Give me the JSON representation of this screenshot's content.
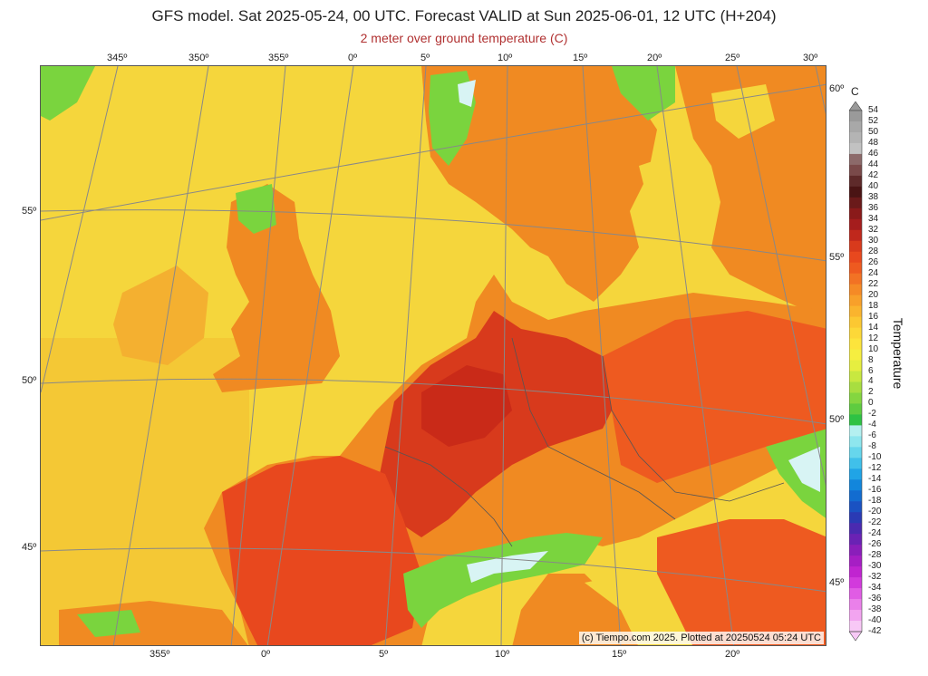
{
  "header": {
    "title": "GFS model. Sat 2025-05-24, 00 UTC. Forecast VALID at Sun 2025-06-01, 12 UTC (H+204)",
    "subtitle": "2 meter over ground temperature (C)"
  },
  "map": {
    "top_longitudes": [
      "345º",
      "350º",
      "355º",
      "0º",
      "5º",
      "10º",
      "15º",
      "20º",
      "25º",
      "30º"
    ],
    "bottom_longitudes": [
      "355º",
      "0º",
      "5º",
      "10º",
      "15º",
      "20º"
    ],
    "left_latitudes": [
      "55º",
      "50º",
      "45º"
    ],
    "right_latitudes": [
      "60º",
      "55º",
      "50º",
      "45º"
    ],
    "copyright": "(c) Tiempo.com 2025. Plotted at 20250524 05:24 UTC",
    "colors": {
      "ocean_warm": "#f5d63c",
      "land_hot": "#e8481e",
      "land_very_hot": "#c92a18",
      "land_warm": "#f08a22",
      "cool": "#6ad23c",
      "snow": "#d8f4f4",
      "graticule": "#888888"
    }
  },
  "legend": {
    "unit": "C",
    "title": "Temperature",
    "ticks": [
      "54",
      "52",
      "50",
      "48",
      "46",
      "44",
      "42",
      "40",
      "38",
      "36",
      "34",
      "32",
      "30",
      "28",
      "26",
      "24",
      "22",
      "20",
      "18",
      "16",
      "14",
      "12",
      "10",
      "8",
      "6",
      "4",
      "2",
      "0",
      "-2",
      "-4",
      "-6",
      "-8",
      "-10",
      "-12",
      "-14",
      "-16",
      "-18",
      "-20",
      "-22",
      "-24",
      "-26",
      "-28",
      "-30",
      "-32",
      "-34",
      "-36",
      "-38",
      "-40",
      "-42"
    ],
    "colors": [
      "#9a9a9a",
      "#a8a8a8",
      "#b4b4b4",
      "#c2c2c2",
      "#8c6a6a",
      "#7a4a4a",
      "#5e2a2a",
      "#4a1414",
      "#6a1a1a",
      "#8a1a1a",
      "#a51d1d",
      "#c0281c",
      "#d83a1c",
      "#e8481e",
      "#ee5a20",
      "#f27224",
      "#f58a26",
      "#f8a02a",
      "#fab42e",
      "#fcc832",
      "#fdd838",
      "#fde43c",
      "#f6ee40",
      "#e6ee40",
      "#c8e840",
      "#a8de40",
      "#84d640",
      "#5ecc40",
      "#2ec244",
      "#b4f0f0",
      "#8ee6ee",
      "#66d6ec",
      "#40c0ea",
      "#20a4e6",
      "#1286dc",
      "#126cd0",
      "#1a52c2",
      "#2a3ab4",
      "#4a2ab0",
      "#6a22b4",
      "#8a1eba",
      "#a61ec4",
      "#c024d0",
      "#d23adc",
      "#e05ce4",
      "#ea80ea",
      "#f2a4f0",
      "#f8c8f6"
    ]
  }
}
